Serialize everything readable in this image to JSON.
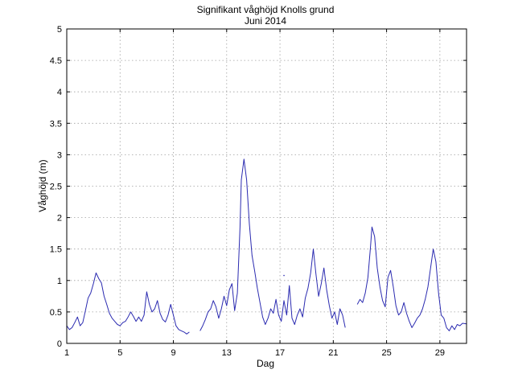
{
  "chart_data": {
    "type": "line",
    "title": "Signifikant våghöjd Knolls grund",
    "subtitle": "Juni 2014",
    "xlabel": "Dag",
    "ylabel": "Våghöjd (m)",
    "xlim": [
      1,
      31
    ],
    "ylim": [
      0,
      5
    ],
    "xticks": [
      1,
      5,
      9,
      13,
      17,
      21,
      25,
      29
    ],
    "yticks": [
      0,
      0.5,
      1,
      1.5,
      2,
      2.5,
      3,
      3.5,
      4,
      4.5,
      5
    ],
    "ytick_labels": [
      "0",
      "0.5",
      "1",
      "1.5",
      "2",
      "2.5",
      "3",
      "3.5",
      "4",
      "4.5",
      "5"
    ],
    "grid": true,
    "line_color": "#2a2ab0",
    "series": [
      {
        "segments": [
          [
            [
              1.0,
              0.28
            ],
            [
              1.2,
              0.22
            ],
            [
              1.4,
              0.25
            ],
            [
              1.6,
              0.33
            ],
            [
              1.8,
              0.42
            ],
            [
              2.0,
              0.28
            ],
            [
              2.2,
              0.33
            ],
            [
              2.4,
              0.52
            ],
            [
              2.6,
              0.72
            ],
            [
              2.8,
              0.8
            ],
            [
              3.0,
              0.95
            ],
            [
              3.2,
              1.12
            ],
            [
              3.4,
              1.03
            ],
            [
              3.6,
              0.96
            ],
            [
              3.8,
              0.75
            ],
            [
              4.0,
              0.62
            ],
            [
              4.2,
              0.48
            ],
            [
              4.4,
              0.4
            ],
            [
              4.6,
              0.35
            ],
            [
              4.8,
              0.3
            ],
            [
              5.0,
              0.28
            ],
            [
              5.2,
              0.33
            ],
            [
              5.4,
              0.35
            ],
            [
              5.6,
              0.42
            ],
            [
              5.8,
              0.5
            ],
            [
              6.0,
              0.43
            ],
            [
              6.2,
              0.35
            ],
            [
              6.4,
              0.42
            ],
            [
              6.6,
              0.35
            ],
            [
              6.8,
              0.45
            ],
            [
              7.0,
              0.82
            ],
            [
              7.2,
              0.62
            ],
            [
              7.4,
              0.5
            ],
            [
              7.6,
              0.55
            ],
            [
              7.8,
              0.68
            ],
            [
              8.0,
              0.48
            ],
            [
              8.2,
              0.38
            ],
            [
              8.4,
              0.34
            ],
            [
              8.6,
              0.45
            ],
            [
              8.8,
              0.62
            ],
            [
              9.0,
              0.45
            ],
            [
              9.2,
              0.28
            ],
            [
              9.4,
              0.22
            ],
            [
              9.6,
              0.2
            ],
            [
              9.8,
              0.18
            ],
            [
              10.0,
              0.15
            ],
            [
              10.2,
              0.18
            ]
          ],
          [
            [
              11.0,
              0.2
            ],
            [
              11.2,
              0.28
            ],
            [
              11.4,
              0.38
            ],
            [
              11.6,
              0.5
            ],
            [
              11.8,
              0.55
            ],
            [
              12.0,
              0.68
            ],
            [
              12.2,
              0.58
            ],
            [
              12.4,
              0.4
            ],
            [
              12.6,
              0.55
            ],
            [
              12.8,
              0.75
            ],
            [
              13.0,
              0.6
            ],
            [
              13.2,
              0.85
            ],
            [
              13.4,
              0.95
            ],
            [
              13.6,
              0.52
            ],
            [
              13.8,
              0.8
            ],
            [
              14.0,
              1.85
            ],
            [
              14.1,
              2.6
            ],
            [
              14.3,
              2.93
            ],
            [
              14.5,
              2.6
            ],
            [
              14.7,
              1.9
            ],
            [
              14.9,
              1.4
            ],
            [
              15.1,
              1.15
            ],
            [
              15.3,
              0.88
            ],
            [
              15.5,
              0.65
            ],
            [
              15.7,
              0.42
            ],
            [
              15.9,
              0.3
            ],
            [
              16.1,
              0.4
            ],
            [
              16.3,
              0.55
            ],
            [
              16.5,
              0.48
            ],
            [
              16.7,
              0.7
            ],
            [
              16.9,
              0.45
            ],
            [
              17.1,
              0.35
            ],
            [
              17.3,
              0.68
            ],
            [
              17.5,
              0.45
            ],
            [
              17.7,
              0.92
            ],
            [
              17.9,
              0.4
            ],
            [
              18.1,
              0.3
            ],
            [
              18.3,
              0.45
            ],
            [
              18.5,
              0.55
            ],
            [
              18.7,
              0.42
            ],
            [
              18.9,
              0.72
            ],
            [
              19.1,
              0.88
            ],
            [
              19.3,
              1.12
            ],
            [
              19.5,
              1.5
            ],
            [
              19.7,
              1.1
            ],
            [
              19.9,
              0.75
            ],
            [
              20.1,
              0.95
            ],
            [
              20.3,
              1.2
            ],
            [
              20.5,
              0.85
            ],
            [
              20.7,
              0.6
            ],
            [
              20.9,
              0.4
            ],
            [
              21.1,
              0.5
            ],
            [
              21.3,
              0.3
            ],
            [
              21.5,
              0.55
            ],
            [
              21.7,
              0.45
            ],
            [
              21.9,
              0.25
            ]
          ],
          [
            [
              22.8,
              0.62
            ],
            [
              23.0,
              0.7
            ],
            [
              23.2,
              0.65
            ],
            [
              23.4,
              0.8
            ],
            [
              23.6,
              1.05
            ],
            [
              23.8,
              1.55
            ],
            [
              23.9,
              1.85
            ],
            [
              24.1,
              1.7
            ],
            [
              24.3,
              1.2
            ],
            [
              24.5,
              0.9
            ],
            [
              24.7,
              0.68
            ],
            [
              24.9,
              0.58
            ],
            [
              25.1,
              1.05
            ],
            [
              25.3,
              1.16
            ],
            [
              25.5,
              0.9
            ],
            [
              25.7,
              0.6
            ],
            [
              25.9,
              0.45
            ],
            [
              26.1,
              0.5
            ],
            [
              26.3,
              0.65
            ],
            [
              26.5,
              0.48
            ],
            [
              26.7,
              0.35
            ],
            [
              26.9,
              0.25
            ],
            [
              27.1,
              0.32
            ],
            [
              27.3,
              0.4
            ],
            [
              27.5,
              0.45
            ],
            [
              27.7,
              0.55
            ],
            [
              27.9,
              0.7
            ],
            [
              28.1,
              0.9
            ],
            [
              28.3,
              1.2
            ],
            [
              28.5,
              1.5
            ],
            [
              28.7,
              1.3
            ],
            [
              28.9,
              0.8
            ],
            [
              29.1,
              0.45
            ],
            [
              29.3,
              0.4
            ],
            [
              29.5,
              0.25
            ],
            [
              29.7,
              0.2
            ],
            [
              29.9,
              0.28
            ],
            [
              30.1,
              0.22
            ],
            [
              30.3,
              0.3
            ],
            [
              30.5,
              0.28
            ],
            [
              30.7,
              0.32
            ],
            [
              31.0,
              0.31
            ]
          ]
        ],
        "isolated_points": [
          [
            17.3,
            1.08
          ]
        ]
      }
    ]
  }
}
